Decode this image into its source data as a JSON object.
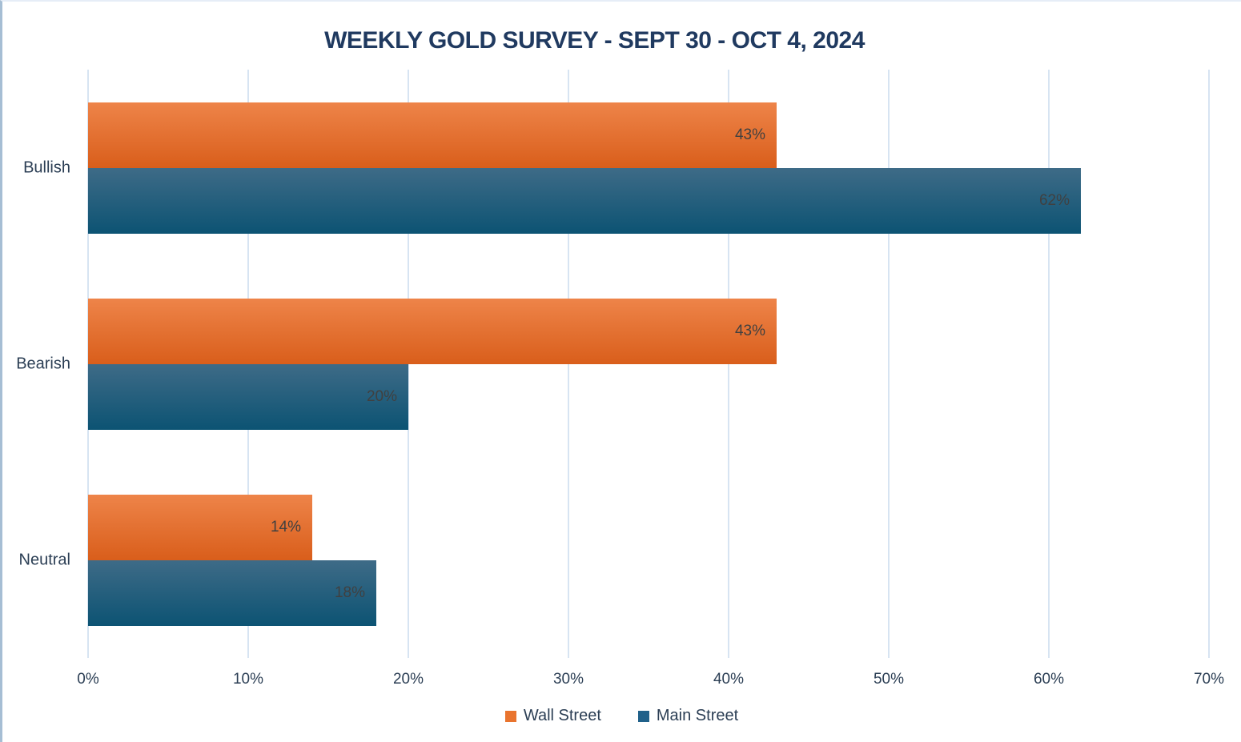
{
  "chart": {
    "title": "WEEKLY GOLD SURVEY - SEPT 30 - OCT 4, 2024",
    "title_color": "#203A60"
  },
  "chart_data": {
    "type": "bar",
    "orientation": "horizontal",
    "title": "WEEKLY GOLD SURVEY - SEPT 30 - OCT 4, 2024",
    "categories": [
      "Bullish",
      "Bearish",
      "Neutral"
    ],
    "series": [
      {
        "name": "Wall Street",
        "values": [
          43,
          43,
          14
        ],
        "labels": [
          "43%",
          "43%",
          "14%"
        ],
        "color_top": "#EE8449",
        "color_bottom": "#D95E1B",
        "legend_color": "#E9742E"
      },
      {
        "name": "Main Street",
        "values": [
          62,
          20,
          18
        ],
        "labels": [
          "62%",
          "20%",
          "18%"
        ],
        "color_top": "#3E6B87",
        "color_bottom": "#0C5373",
        "legend_color": "#20618A"
      }
    ],
    "xlabel": "",
    "ylabel": "",
    "xlim": [
      0,
      70
    ],
    "x_ticks": [
      {
        "value": 0,
        "label": "0%"
      },
      {
        "value": 10,
        "label": "10%"
      },
      {
        "value": 20,
        "label": "20%"
      },
      {
        "value": 30,
        "label": "30%"
      },
      {
        "value": 40,
        "label": "40%"
      },
      {
        "value": 50,
        "label": "50%"
      },
      {
        "value": 60,
        "label": "60%"
      },
      {
        "value": 70,
        "label": "70%"
      }
    ],
    "grid": true,
    "gridline_color": "#D7E4F2",
    "value_label_color": "#404040",
    "axis_text_color": "#2B3E54",
    "legend_position": "bottom"
  }
}
